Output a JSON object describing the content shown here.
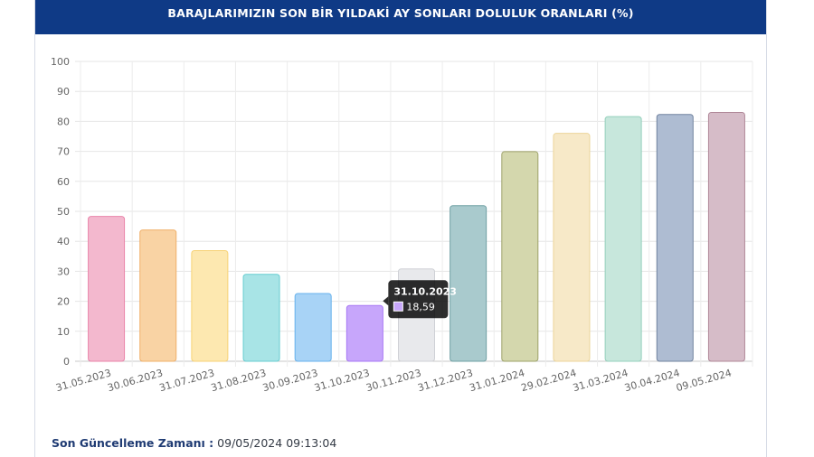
{
  "header": {
    "title": "BARAJLARIMIZIN SON BİR YILDAKİ AY SONLARI DOLULUK ORANLARI (%)"
  },
  "chart_data": {
    "type": "bar",
    "title": "BARAJLARIMIZIN SON BİR YILDAKİ AY SONLARI DOLULUK ORANLARI (%)",
    "xlabel": "",
    "ylabel": "",
    "ylim": [
      0,
      100
    ],
    "yticks": [
      "0",
      "10",
      "20",
      "30",
      "40",
      "50",
      "60",
      "70",
      "80",
      "90",
      "100"
    ],
    "grid": true,
    "categories": [
      "31.05.2023",
      "30.06.2023",
      "31.07.2023",
      "31.08.2023",
      "30.09.2023",
      "31.10.2023",
      "30.11.2023",
      "31.12.2023",
      "31.01.2024",
      "29.02.2024",
      "31.03.2024",
      "30.04.2024",
      "09.05.2024"
    ],
    "values": [
      48.3,
      43.8,
      36.9,
      29.0,
      22.6,
      18.59,
      30.8,
      51.9,
      69.9,
      76.0,
      81.6,
      82.3,
      83.0
    ],
    "colors": [
      {
        "fill": "#f3b8ce",
        "stroke": "#e985aa"
      },
      {
        "fill": "#f9d3a4",
        "stroke": "#f0b06a"
      },
      {
        "fill": "#fde8b0",
        "stroke": "#f7d276"
      },
      {
        "fill": "#a8e4e6",
        "stroke": "#67cdd1"
      },
      {
        "fill": "#a8d3f6",
        "stroke": "#67b2ec"
      },
      {
        "fill": "#c7a6fb",
        "stroke": "#a878f5"
      },
      {
        "fill": "#e8e9ec",
        "stroke": "#cfd1d6"
      },
      {
        "fill": "#a9cacd",
        "stroke": "#6fa0a4"
      },
      {
        "fill": "#d4d7ad",
        "stroke": "#9ea36a"
      },
      {
        "fill": "#f7e9c8",
        "stroke": "#ecd59a"
      },
      {
        "fill": "#c7e7dc",
        "stroke": "#94d0bc"
      },
      {
        "fill": "#aebcd2",
        "stroke": "#71839f"
      },
      {
        "fill": "#d6bcc8",
        "stroke": "#b08898"
      }
    ],
    "tooltip": {
      "index": 5,
      "title": "31.10.2023",
      "value_label": "18,59"
    }
  },
  "footer": {
    "label": "Son Güncelleme Zamanı :",
    "value": "09/05/2024 09:13:04"
  }
}
